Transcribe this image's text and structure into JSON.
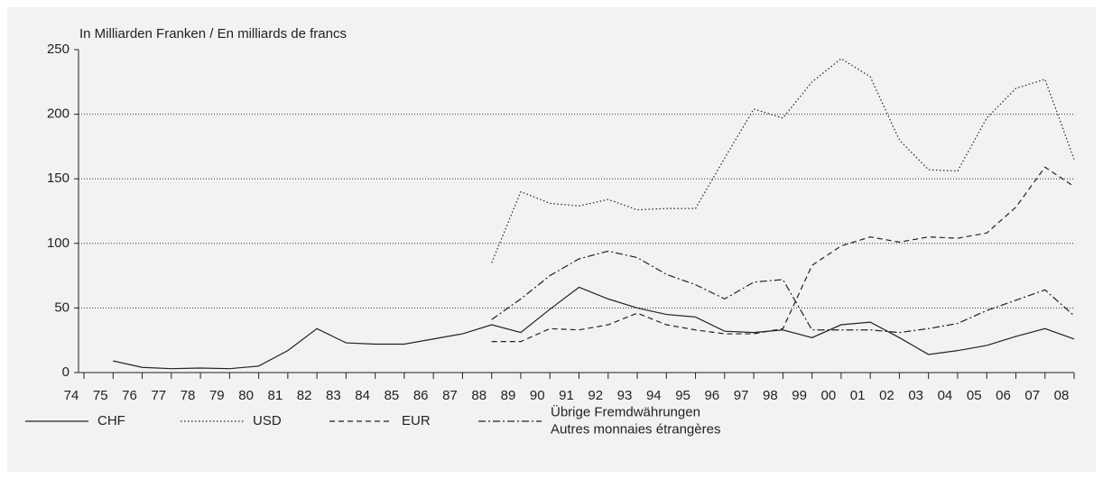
{
  "chart_data": {
    "type": "line",
    "axis_title": "In Milliarden Franken / En milliards de francs",
    "categories": [
      "74",
      "75",
      "76",
      "77",
      "78",
      "79",
      "80",
      "81",
      "82",
      "83",
      "84",
      "85",
      "86",
      "87",
      "88",
      "89",
      "90",
      "91",
      "92",
      "93",
      "94",
      "95",
      "96",
      "97",
      "98",
      "99",
      "00",
      "01",
      "02",
      "03",
      "04",
      "05",
      "06",
      "07",
      "08"
    ],
    "series": [
      {
        "name": [
          "CHF"
        ],
        "color": "#222222",
        "dash": "solid",
        "values": [
          null,
          9,
          4,
          3,
          3.5,
          3,
          5,
          17,
          34,
          23,
          22,
          22,
          26,
          30,
          37,
          31,
          49,
          66,
          57,
          50,
          45,
          43,
          32,
          31,
          33,
          27,
          37,
          39,
          27,
          14,
          17,
          21,
          28,
          34,
          26
        ]
      },
      {
        "name": [
          "USD"
        ],
        "color": "#222222",
        "dash": "dotted",
        "values": [
          null,
          null,
          null,
          null,
          null,
          null,
          null,
          null,
          null,
          null,
          null,
          null,
          null,
          null,
          85,
          140,
          131,
          129,
          134,
          126,
          127,
          127,
          166,
          204,
          197,
          225,
          243,
          229,
          180,
          157,
          156,
          197,
          220,
          227,
          165
        ]
      },
      {
        "name": [
          "EUR"
        ],
        "color": "#222222",
        "dash": "dashed",
        "values": [
          null,
          null,
          null,
          null,
          null,
          null,
          null,
          null,
          null,
          null,
          null,
          null,
          null,
          null,
          24,
          24,
          34,
          33,
          37,
          46,
          37,
          33,
          30,
          30,
          34,
          83,
          98,
          105,
          101,
          105,
          104,
          108,
          128,
          159,
          144
        ]
      },
      {
        "name": [
          "Übrige Fremdwährungen",
          "Autres monnaies étrangères"
        ],
        "color": "#222222",
        "dash": "dashdot",
        "values": [
          null,
          null,
          null,
          null,
          null,
          null,
          null,
          null,
          null,
          null,
          null,
          null,
          null,
          null,
          41,
          57,
          75,
          88,
          94,
          89,
          76,
          68,
          57,
          70,
          72,
          33,
          33,
          33,
          31,
          34,
          38,
          48,
          56,
          64,
          44
        ]
      }
    ],
    "ylim": [
      0,
      250
    ],
    "yticks": [
      0,
      50,
      100,
      150,
      200,
      250
    ],
    "grid": true
  }
}
